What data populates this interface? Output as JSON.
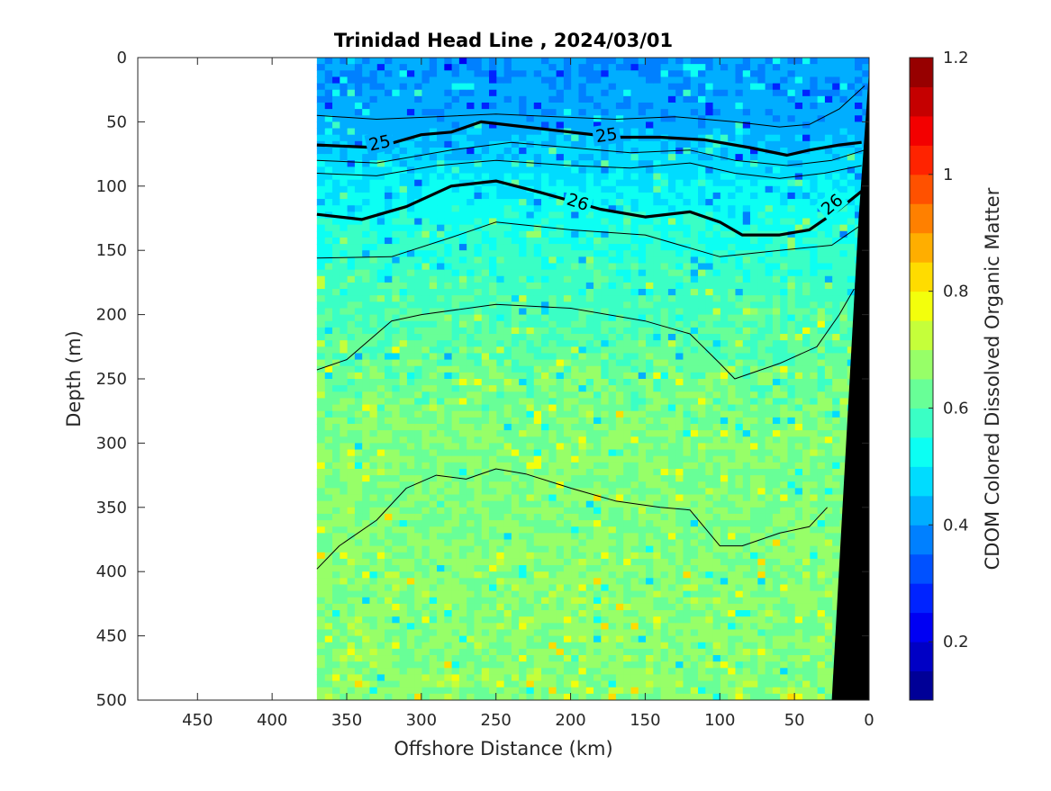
{
  "chart_data": {
    "type": "heatmap",
    "title": "Trinidad Head Line , 2024/03/01",
    "xlabel": "Offshore Distance (km)",
    "ylabel": "Depth (m)",
    "colorbar_label": "CDOM Colored Dissolved Organic Matter",
    "xlim": [
      490,
      0
    ],
    "ylim": [
      0,
      500
    ],
    "x_reversed": true,
    "y_reversed": true,
    "x_ticks": [
      450,
      400,
      350,
      300,
      250,
      200,
      150,
      100,
      50,
      0
    ],
    "y_ticks": [
      0,
      50,
      100,
      150,
      200,
      250,
      300,
      350,
      400,
      450,
      500
    ],
    "clim": [
      0.1,
      1.2
    ],
    "colorbar_ticks": [
      1.2,
      1,
      0.8,
      0.6,
      0.4,
      0.2
    ],
    "colorbar_tick_labels": [
      "1.2",
      "1",
      "0.8",
      "0.6",
      "0.4",
      "0.2"
    ],
    "data_extent_km": [
      370,
      0
    ],
    "cdom_profile": {
      "depth_m": [
        0,
        50,
        70,
        100,
        130,
        160,
        200,
        250,
        300,
        350,
        400,
        500
      ],
      "value": [
        0.4,
        0.42,
        0.45,
        0.5,
        0.54,
        0.57,
        0.59,
        0.63,
        0.65,
        0.65,
        0.66,
        0.66
      ]
    },
    "seafloor": [
      [
        0,
        0
      ],
      [
        0,
        10
      ],
      [
        7,
        125
      ],
      [
        13,
        250
      ],
      [
        19,
        375
      ],
      [
        25,
        500
      ],
      [
        0,
        500
      ]
    ],
    "contours": [
      {
        "label": "25",
        "bold": true,
        "x": [
          370,
          330,
          300,
          280,
          260,
          230,
          200,
          170,
          140,
          110,
          80,
          55,
          40,
          20,
          5
        ],
        "y": [
          68,
          70,
          60,
          58,
          50,
          54,
          58,
          62,
          62,
          64,
          70,
          76,
          72,
          68,
          66
        ]
      },
      {
        "label": "26",
        "bold": true,
        "x": [
          370,
          340,
          310,
          280,
          250,
          220,
          180,
          150,
          120,
          100,
          85,
          60,
          40,
          20,
          5
        ],
        "y": [
          122,
          126,
          116,
          100,
          96,
          105,
          118,
          124,
          120,
          128,
          138,
          138,
          134,
          118,
          104
        ]
      },
      {
        "label": "",
        "bold": false,
        "x": [
          370,
          330,
          290,
          250,
          210,
          170,
          130,
          90,
          60,
          40,
          20,
          3
        ],
        "y": [
          45,
          48,
          46,
          44,
          46,
          48,
          46,
          50,
          54,
          52,
          40,
          22
        ]
      },
      {
        "label": "",
        "bold": false,
        "x": [
          370,
          330,
          280,
          240,
          200,
          160,
          120,
          90,
          55,
          25,
          3
        ],
        "y": [
          80,
          82,
          72,
          66,
          70,
          74,
          72,
          80,
          84,
          80,
          72
        ]
      },
      {
        "label": "",
        "bold": false,
        "x": [
          370,
          330,
          290,
          250,
          200,
          160,
          120,
          90,
          60,
          30,
          5
        ],
        "y": [
          90,
          92,
          84,
          80,
          84,
          86,
          82,
          90,
          94,
          90,
          84
        ]
      },
      {
        "label": "",
        "bold": false,
        "x": [
          370,
          320,
          280,
          250,
          200,
          150,
          100,
          60,
          25,
          5
        ],
        "y": [
          156,
          155,
          140,
          128,
          134,
          138,
          155,
          150,
          146,
          130
        ]
      },
      {
        "label": "",
        "bold": false,
        "x": [
          370,
          350,
          320,
          300,
          250,
          200,
          150,
          120,
          100,
          90,
          60,
          35,
          20,
          10
        ],
        "y": [
          243,
          235,
          205,
          200,
          192,
          195,
          205,
          215,
          238,
          250,
          238,
          225,
          200,
          180
        ]
      },
      {
        "label": "",
        "bold": false,
        "x": [
          370,
          355,
          330,
          310,
          290,
          270,
          250,
          230,
          200,
          170,
          140,
          120,
          100,
          85,
          60,
          40,
          28
        ],
        "y": [
          398,
          380,
          360,
          335,
          325,
          328,
          320,
          324,
          335,
          345,
          350,
          352,
          380,
          380,
          370,
          365,
          350
        ]
      }
    ]
  }
}
